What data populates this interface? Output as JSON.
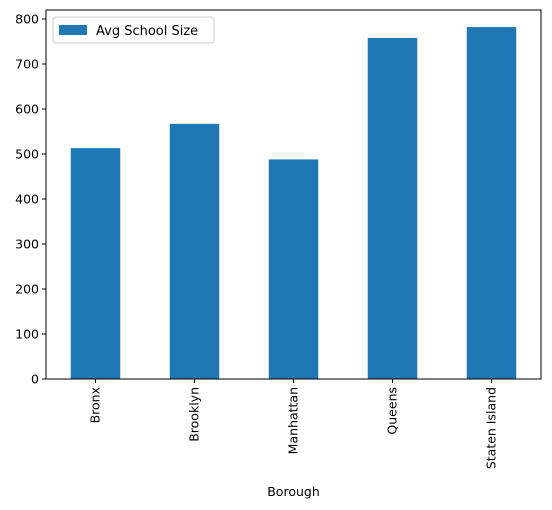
{
  "chart_data": {
    "type": "bar",
    "categories": [
      "Bronx",
      "Brooklyn",
      "Manhattan",
      "Queens",
      "Staten Island"
    ],
    "series": [
      {
        "name": "Avg School Size",
        "values": [
          513,
          567,
          488,
          758,
          782
        ],
        "color": "#1f77b4"
      }
    ],
    "xlabel": "Borough",
    "ylabel": "",
    "ylim": [
      0,
      820
    ],
    "yticks": [
      0,
      100,
      200,
      300,
      400,
      500,
      600,
      700,
      800
    ],
    "grid": false,
    "legend_position": "top-left"
  }
}
